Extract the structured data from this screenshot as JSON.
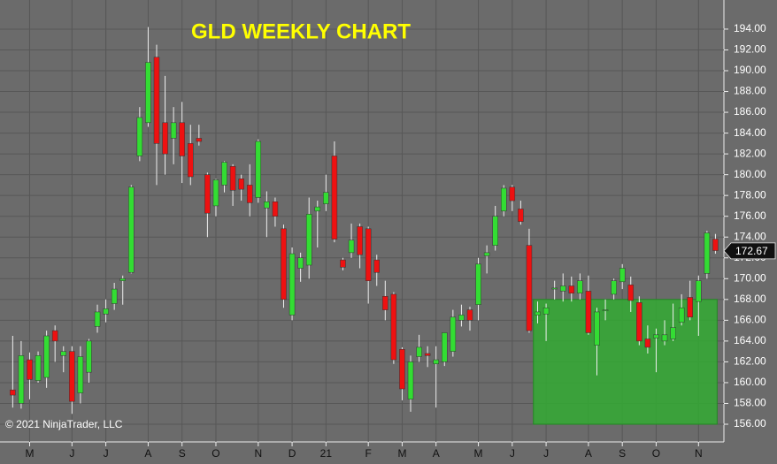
{
  "chart_data": {
    "type": "candlestick",
    "title": "GLD WEEKLY CHART",
    "footer": "© 2021 NinjaTrader, LLC",
    "xlim": [
      -1.5,
      84
    ],
    "ylim": [
      154.3,
      196.8
    ],
    "xticks": [
      {
        "value": 2,
        "label": "M"
      },
      {
        "value": 7,
        "label": "J"
      },
      {
        "value": 11,
        "label": "J"
      },
      {
        "value": 16,
        "label": "A"
      },
      {
        "value": 20,
        "label": "S"
      },
      {
        "value": 24,
        "label": "O"
      },
      {
        "value": 29,
        "label": "N"
      },
      {
        "value": 33,
        "label": "D"
      },
      {
        "value": 37,
        "label": "21"
      },
      {
        "value": 42,
        "label": "F"
      },
      {
        "value": 46,
        "label": "M"
      },
      {
        "value": 50,
        "label": "A"
      },
      {
        "value": 55,
        "label": "M"
      },
      {
        "value": 59,
        "label": "J"
      },
      {
        "value": 63,
        "label": "J"
      },
      {
        "value": 68,
        "label": "A"
      },
      {
        "value": 72,
        "label": "S"
      },
      {
        "value": 76,
        "label": "O"
      },
      {
        "value": 81,
        "label": "N"
      }
    ],
    "yticks": [
      {
        "value": 156,
        "label": "156.00"
      },
      {
        "value": 158,
        "label": "158.00"
      },
      {
        "value": 160,
        "label": "160.00"
      },
      {
        "value": 162,
        "label": "162.00"
      },
      {
        "value": 164,
        "label": "164.00"
      },
      {
        "value": 166,
        "label": "166.00"
      },
      {
        "value": 168,
        "label": "168.00"
      },
      {
        "value": 170,
        "label": "170.00"
      },
      {
        "value": 172,
        "label": "172.00"
      },
      {
        "value": 174,
        "label": "174.00"
      },
      {
        "value": 176,
        "label": "176.00"
      },
      {
        "value": 178,
        "label": "178.00"
      },
      {
        "value": 180,
        "label": "180.00"
      },
      {
        "value": 182,
        "label": "182.00"
      },
      {
        "value": 184,
        "label": "184.00"
      },
      {
        "value": 186,
        "label": "186.00"
      },
      {
        "value": 188,
        "label": "188.00"
      },
      {
        "value": 190,
        "label": "190.00"
      },
      {
        "value": 192,
        "label": "192.00"
      },
      {
        "value": 194,
        "label": "194.00"
      }
    ],
    "grid": true,
    "up_color": "#33dd33",
    "down_color": "#ee1111",
    "last_price": 172.67,
    "zone": {
      "from": 61.5,
      "to": 83.2,
      "low": 156,
      "high": 168,
      "color": "#33aa33"
    },
    "open": [
      159.3,
      158,
      162.2,
      160.2,
      160.5,
      165,
      162.6,
      163,
      159,
      161,
      165.4,
      166.6,
      167.6,
      169.8,
      170.6,
      181.8,
      185,
      191.3,
      185,
      183.5,
      185,
      183,
      183.5,
      180,
      177,
      179,
      180.8,
      179.6,
      179,
      177.8,
      176.8,
      177.4,
      174.8,
      166.5,
      171,
      171.3,
      176.5,
      177.2,
      181.8,
      171.8,
      172.5,
      175,
      174.8,
      171.8,
      168.3,
      168.5,
      163.2,
      158.4,
      162.5,
      162.8,
      161.8,
      162,
      163,
      166,
      167,
      167.5,
      172.2,
      173.2,
      176.5,
      178.8,
      176.7,
      173.2,
      166.5,
      166.6,
      169,
      168.8,
      169.3,
      168.6,
      168.8,
      163.6,
      166.9,
      168.5,
      169.7,
      169.4,
      167.7,
      164.2,
      164.3,
      164,
      164.2,
      165.8,
      168.2,
      167.8,
      170.5,
      173.8
    ],
    "high": [
      164.5,
      164,
      162.9,
      163,
      165,
      165.5,
      163.5,
      163.5,
      163.5,
      164.2,
      167.5,
      168,
      169.6,
      170.3,
      179,
      186.5,
      194.2,
      192.5,
      189.5,
      186.5,
      187,
      184.8,
      184.8,
      180.2,
      179.6,
      181.3,
      181,
      180,
      181,
      183.4,
      178.4,
      177.8,
      175.2,
      173,
      172.5,
      177.8,
      177.5,
      180,
      183.2,
      172,
      175.3,
      175.3,
      175,
      172.3,
      169.8,
      168.7,
      163.4,
      162.6,
      164.6,
      163.5,
      163.5,
      164.8,
      167,
      167.5,
      167.3,
      172,
      173.2,
      177,
      179,
      179,
      177.5,
      174.8,
      167.8,
      167.6,
      169.8,
      170.5,
      170.2,
      170.5,
      170.3,
      167.2,
      168,
      170,
      171.4,
      170.2,
      168.3,
      165.5,
      165.2,
      166,
      167.6,
      168.5,
      169.8,
      170.3,
      174.6,
      174.3
    ],
    "low": [
      157.6,
      157.5,
      158.4,
      160,
      159.5,
      162,
      161,
      157,
      158,
      160,
      164.8,
      165.8,
      167,
      167.5,
      170.5,
      181.3,
      184.6,
      179,
      180,
      181,
      179.2,
      179,
      182.8,
      174,
      176,
      178.3,
      177,
      177.5,
      176,
      177.3,
      174,
      175,
      167.2,
      166,
      169.7,
      170,
      173,
      176.5,
      173.5,
      170.8,
      172,
      171,
      167.6,
      169.3,
      166,
      161.8,
      158.3,
      157.2,
      162,
      161.5,
      157.6,
      161.6,
      162.5,
      165.4,
      165,
      166,
      170.5,
      172.7,
      176,
      176.5,
      175.2,
      164.8,
      165.7,
      164,
      168,
      167.8,
      167.8,
      168,
      164.6,
      160.7,
      166,
      168,
      169,
      166.8,
      163.6,
      162.8,
      161,
      163.6,
      164,
      165.5,
      166,
      164.5,
      170,
      172.4
    ],
    "close": [
      158.8,
      162.6,
      160.3,
      162.6,
      164.5,
      164,
      163,
      158.2,
      162.5,
      164,
      166.8,
      167.1,
      169,
      170,
      178.8,
      185.5,
      190.8,
      183,
      182,
      185,
      181.8,
      179.8,
      183.2,
      176.3,
      179.5,
      181.2,
      178.5,
      178.6,
      177.3,
      183.2,
      177.4,
      176,
      168,
      172.4,
      172,
      176.2,
      176.9,
      178.3,
      173.8,
      171.1,
      173.7,
      172.3,
      169.8,
      170.6,
      167,
      162.2,
      159.4,
      162,
      163.4,
      162.6,
      162.2,
      164.8,
      166.3,
      166.5,
      166,
      171.4,
      172.5,
      176,
      178.7,
      177.5,
      175.5,
      165,
      166.8,
      167.2,
      169.1,
      169.3,
      168.6,
      169.8,
      164.8,
      166.8,
      167,
      169.8,
      171,
      167.9,
      164,
      163.4,
      164.6,
      164.6,
      165.3,
      167.2,
      166.3,
      169.8,
      174.4,
      172.7
    ]
  }
}
